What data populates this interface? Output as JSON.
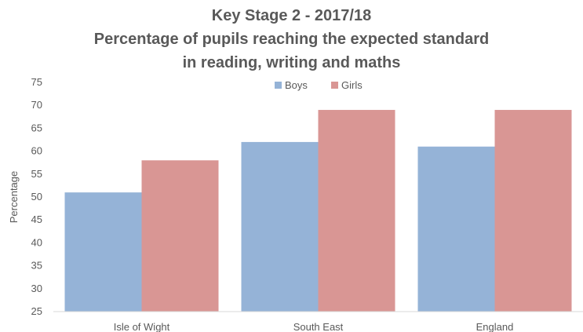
{
  "chart_data": {
    "type": "bar",
    "title_lines": [
      "Key Stage 2 - 2017/18",
      "Percentage of pupils reaching the expected standard",
      "in reading, writing and maths"
    ],
    "categories": [
      "Isle of Wight",
      "South East",
      "England"
    ],
    "series": [
      {
        "name": "Boys",
        "values": [
          51,
          62,
          61
        ],
        "color": "#95b3d7"
      },
      {
        "name": "Girls",
        "values": [
          58,
          69,
          69
        ],
        "color": "#d99694"
      }
    ],
    "xlabel": "",
    "ylabel": "Percentage",
    "ylim": [
      25,
      75
    ],
    "yticks": [
      25,
      30,
      35,
      40,
      45,
      50,
      55,
      60,
      65,
      70,
      75
    ],
    "grid": false,
    "legend": "top-center"
  }
}
